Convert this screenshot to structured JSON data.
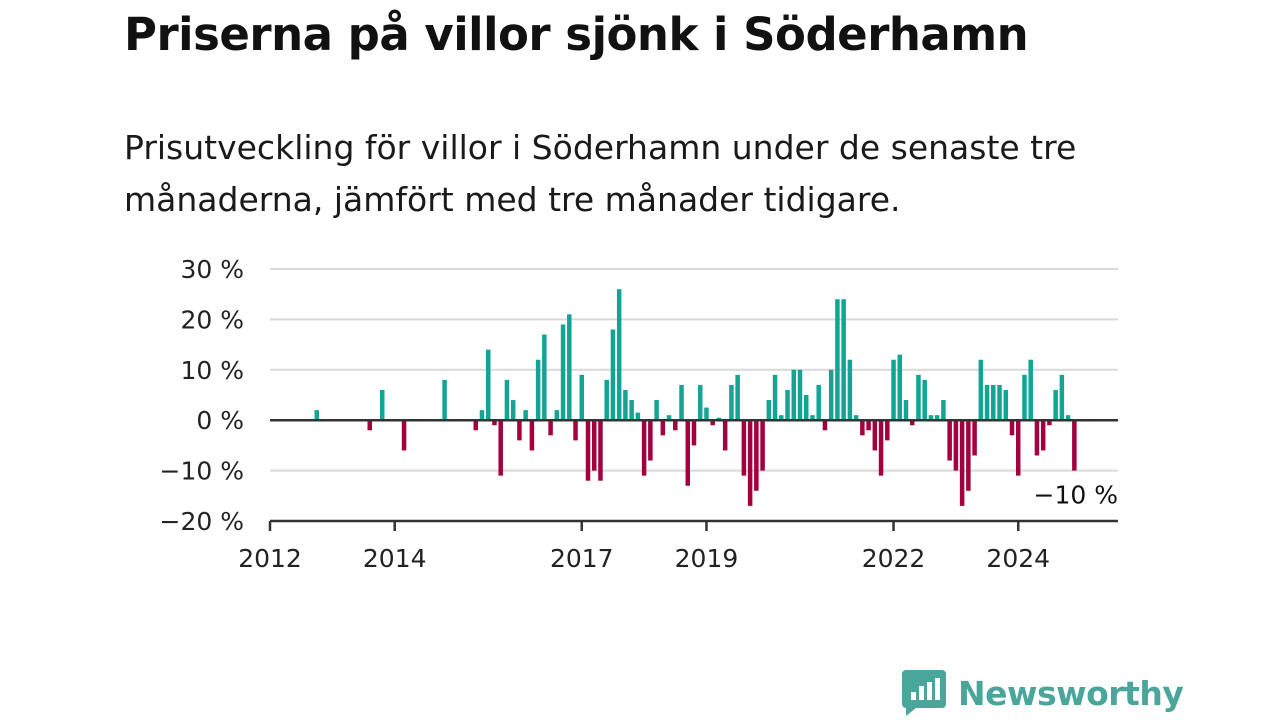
{
  "title": "Priserna på villor sjönk i Söderhamn",
  "subtitle": "Prisutveckling för villor i Söderhamn under de senaste tre månaderna, jämfört med tre månader tidigare.",
  "brand": {
    "name": "Newsworthy",
    "color": "#4aa59b"
  },
  "colors": {
    "positive": "#12a595",
    "negative": "#a3003f",
    "grid": "#d9d9d9",
    "axis": "#333333"
  },
  "chart_data": {
    "type": "bar",
    "ylim": [
      -20,
      30
    ],
    "xlim": [
      2012,
      2025.6
    ],
    "y_ticks": [
      -20,
      -10,
      0,
      10,
      20,
      30
    ],
    "y_tick_labels": [
      "−20 %",
      "−10 %",
      "0 %",
      "10 %",
      "20 %",
      "30 %"
    ],
    "x_ticks": [
      2012,
      2014,
      2017,
      2019,
      2022,
      2024
    ],
    "x_tick_labels": [
      "2012",
      "2014",
      "2017",
      "2019",
      "2022",
      "2024"
    ],
    "grid": true,
    "annotation": {
      "text": "−10 %",
      "x": 2024.9,
      "y": -10
    },
    "x": [
      2012.75,
      2013.6,
      2013.8,
      2014.15,
      2014.8,
      2015.3,
      2015.4,
      2015.5,
      2015.6,
      2015.7,
      2015.8,
      2015.9,
      2016.0,
      2016.1,
      2016.2,
      2016.3,
      2016.4,
      2016.5,
      2016.6,
      2016.7,
      2016.8,
      2016.9,
      2017.0,
      2017.1,
      2017.2,
      2017.3,
      2017.4,
      2017.5,
      2017.6,
      2017.7,
      2017.8,
      2017.9,
      2018.0,
      2018.1,
      2018.2,
      2018.3,
      2018.4,
      2018.5,
      2018.6,
      2018.7,
      2018.8,
      2018.9,
      2019.0,
      2019.1,
      2019.2,
      2019.3,
      2019.4,
      2019.5,
      2019.6,
      2019.7,
      2019.8,
      2019.9,
      2020.0,
      2020.1,
      2020.2,
      2020.3,
      2020.4,
      2020.5,
      2020.6,
      2020.7,
      2020.8,
      2020.9,
      2021.0,
      2021.1,
      2021.2,
      2021.3,
      2021.4,
      2021.5,
      2021.6,
      2021.7,
      2021.8,
      2021.9,
      2022.0,
      2022.1,
      2022.2,
      2022.3,
      2022.4,
      2022.5,
      2022.6,
      2022.7,
      2022.8,
      2022.9,
      2023.0,
      2023.1,
      2023.2,
      2023.3,
      2023.4,
      2023.5,
      2023.6,
      2023.7,
      2023.8,
      2023.9,
      2024.0,
      2024.1,
      2024.2,
      2024.3,
      2024.4,
      2024.5,
      2024.6,
      2024.7,
      2024.8,
      2024.9
    ],
    "values": [
      2,
      -2,
      6,
      -6,
      8,
      -2,
      2,
      14,
      -1,
      -11,
      8,
      4,
      -4,
      2,
      -6,
      12,
      17,
      -3,
      2,
      19,
      21,
      -4,
      9,
      -12,
      -10,
      -12,
      8,
      18,
      26,
      6,
      4,
      1.5,
      -11,
      -8,
      4,
      -3,
      1,
      -2,
      7,
      -13,
      -5,
      7,
      2.5,
      -1,
      0.5,
      -6,
      7,
      9,
      -11,
      -17,
      -14,
      -10,
      4,
      9,
      1,
      6,
      10,
      10,
      5,
      1,
      7,
      -2,
      10,
      24,
      24,
      12,
      1,
      -3,
      -2,
      -6,
      -11,
      -4,
      12,
      13,
      4,
      -1,
      9,
      8,
      1,
      1,
      4,
      -8,
      -10,
      -17,
      -14,
      -7,
      12,
      7,
      7,
      7,
      6,
      -3,
      -11,
      9,
      12,
      -7,
      -6,
      -1,
      6,
      9,
      1,
      -10
    ]
  }
}
